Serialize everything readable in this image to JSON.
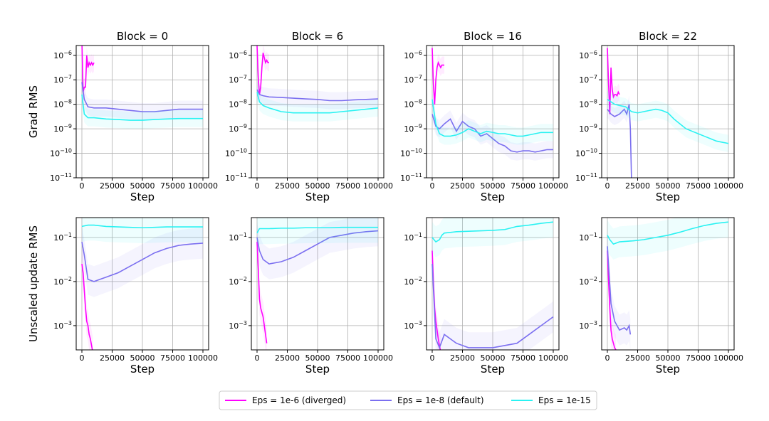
{
  "chart_data": {
    "type": "line",
    "blocks": [
      {
        "title": "Block = 0",
        "grad_x": [
          0,
          100000
        ],
        "upd_x": [
          0,
          100000
        ]
      },
      {
        "title": "Block = 6",
        "grad_x": [
          0,
          100000
        ],
        "upd_x": [
          0,
          100000
        ]
      },
      {
        "title": "Block = 16",
        "grad_x": [
          0,
          100000
        ],
        "upd_x": [
          0,
          100000
        ]
      },
      {
        "title": "Block = 22",
        "grad_x": [
          0,
          100000
        ],
        "upd_x": [
          0,
          100000
        ]
      }
    ],
    "xlabel": "Step",
    "x_ticks": [
      "0",
      "25000",
      "50000",
      "75000",
      "100000"
    ],
    "rows": [
      {
        "ylabel": "Grad RMS",
        "y_ticks": [
          "10-11",
          "10-10",
          "10-9",
          "10-8",
          "10-7",
          "10-6"
        ],
        "y_log_range": [
          -11,
          -5.6
        ]
      },
      {
        "ylabel": "Unscaled update RMS",
        "y_ticks": [
          "10-3",
          "10-2",
          "10-1"
        ],
        "y_log_range": [
          -3.55,
          -0.55
        ]
      }
    ],
    "legend": {
      "placement": "bottom-center",
      "entries": [
        {
          "label": "Eps = 1e-6 (diverged)",
          "color": "#ff00ff"
        },
        {
          "label": "Eps = 1e-8 (default)",
          "color": "#7b6ff0"
        },
        {
          "label": "Eps = 1e-15",
          "color": "#2af2f2"
        }
      ]
    },
    "series": {
      "grad": [
        [
          {
            "name": "Eps = 1e-6 (diverged)",
            "x": [
              0,
              1000,
              2000,
              3000,
              4000,
              5000,
              6000,
              7000,
              8000,
              9000,
              10000
            ],
            "y": [
              -5.4,
              -7.5,
              -7.3,
              -7.3,
              -6.0,
              -6.5,
              -6.3,
              -6.4,
              -6.3,
              -6.4,
              -6.3
            ]
          },
          {
            "name": "Eps = 1e-8 (default)",
            "x": [
              0,
              2000,
              5000,
              10000,
              20000,
              30000,
              40000,
              50000,
              60000,
              70000,
              80000,
              90000,
              100000
            ],
            "y": [
              -7.1,
              -7.8,
              -8.1,
              -8.15,
              -8.15,
              -8.2,
              -8.25,
              -8.3,
              -8.3,
              -8.25,
              -8.2,
              -8.2,
              -8.2
            ]
          },
          {
            "name": "Eps = 1e-15",
            "x": [
              0,
              2000,
              5000,
              10000,
              20000,
              30000,
              40000,
              50000,
              60000,
              70000,
              80000,
              90000,
              100000
            ],
            "y": [
              -7.6,
              -8.4,
              -8.55,
              -8.55,
              -8.6,
              -8.62,
              -8.65,
              -8.65,
              -8.62,
              -8.6,
              -8.58,
              -8.58,
              -8.58
            ]
          }
        ],
        [
          {
            "name": "Eps = 1e-6 (diverged)",
            "x": [
              0,
              1000,
              2000,
              3000,
              4000,
              5000,
              6000,
              7000,
              8000,
              9000,
              10000
            ],
            "y": [
              -5.6,
              -6.9,
              -7.6,
              -7.3,
              -6.5,
              -5.9,
              -6.1,
              -6.3,
              -6.2,
              -6.3,
              -6.3
            ]
          },
          {
            "name": "Eps = 1e-8 (default)",
            "x": [
              0,
              2000,
              5000,
              10000,
              20000,
              30000,
              40000,
              50000,
              60000,
              70000,
              80000,
              90000,
              100000
            ],
            "y": [
              -7.4,
              -7.6,
              -7.65,
              -7.7,
              -7.72,
              -7.75,
              -7.78,
              -7.8,
              -7.85,
              -7.85,
              -7.82,
              -7.8,
              -7.78
            ]
          },
          {
            "name": "Eps = 1e-15",
            "x": [
              0,
              2000,
              5000,
              10000,
              20000,
              30000,
              40000,
              50000,
              60000,
              70000,
              80000,
              90000,
              100000
            ],
            "y": [
              -7.5,
              -7.9,
              -8.05,
              -8.15,
              -8.3,
              -8.35,
              -8.35,
              -8.35,
              -8.35,
              -8.3,
              -8.25,
              -8.2,
              -8.15
            ]
          }
        ],
        [
          {
            "name": "Eps = 1e-6 (diverged)",
            "x": [
              0,
              1000,
              2000,
              3000,
              4000,
              5000,
              6000,
              7000,
              8000,
              9000,
              10000
            ],
            "y": [
              -5.7,
              -7.2,
              -8.0,
              -7.0,
              -6.5,
              -6.3,
              -6.4,
              -6.5,
              -6.4,
              -6.4,
              -6.4
            ]
          },
          {
            "name": "Eps = 1e-8 (default)",
            "x": [
              0,
              3000,
              6000,
              10000,
              15000,
              20000,
              25000,
              30000,
              35000,
              40000,
              45000,
              50000,
              55000,
              60000,
              65000,
              70000,
              75000,
              80000,
              85000,
              90000,
              95000,
              100000
            ],
            "y": [
              -8.4,
              -8.9,
              -9.0,
              -8.8,
              -8.6,
              -9.1,
              -8.7,
              -8.9,
              -9.0,
              -9.3,
              -9.2,
              -9.4,
              -9.6,
              -9.7,
              -9.9,
              -9.95,
              -9.9,
              -9.9,
              -9.95,
              -9.9,
              -9.85,
              -9.85
            ]
          },
          {
            "name": "Eps = 1e-15",
            "x": [
              0,
              3000,
              6000,
              10000,
              15000,
              20000,
              25000,
              30000,
              35000,
              40000,
              45000,
              50000,
              55000,
              60000,
              65000,
              70000,
              75000,
              80000,
              85000,
              90000,
              95000,
              100000
            ],
            "y": [
              -7.8,
              -8.8,
              -9.2,
              -9.3,
              -9.3,
              -9.25,
              -9.15,
              -9.0,
              -9.1,
              -9.2,
              -9.1,
              -9.15,
              -9.2,
              -9.2,
              -9.25,
              -9.3,
              -9.3,
              -9.25,
              -9.2,
              -9.15,
              -9.15,
              -9.15
            ]
          }
        ],
        [
          {
            "name": "Eps = 1e-6 (diverged)",
            "x": [
              0,
              1000,
              2000,
              3000,
              4000,
              5000,
              6000,
              7000,
              8000,
              9000,
              10000
            ],
            "y": [
              -5.7,
              -7.2,
              -8.4,
              -6.5,
              -7.4,
              -7.7,
              -7.6,
              -7.6,
              -7.65,
              -7.5,
              -7.6
            ]
          },
          {
            "name": "Eps = 1e-8 (default)",
            "x": [
              0,
              3000,
              6000,
              10000,
              14000,
              16000,
              18000,
              19000,
              20000
            ],
            "y": [
              -8.2,
              -8.4,
              -8.5,
              -8.4,
              -8.2,
              -8.4,
              -8.0,
              -9.0,
              -11.2
            ]
          },
          {
            "name": "Eps = 1e-15",
            "x": [
              0,
              3000,
              6000,
              10000,
              15000,
              20000,
              25000,
              30000,
              35000,
              40000,
              45000,
              50000,
              55000,
              60000,
              65000,
              70000,
              75000,
              80000,
              85000,
              90000,
              95000,
              100000
            ],
            "y": [
              -7.8,
              -7.9,
              -8.0,
              -8.05,
              -8.1,
              -8.3,
              -8.35,
              -8.3,
              -8.25,
              -8.2,
              -8.25,
              -8.35,
              -8.6,
              -8.8,
              -9.0,
              -9.1,
              -9.2,
              -9.3,
              -9.4,
              -9.5,
              -9.55,
              -9.6
            ]
          }
        ]
      ],
      "update": [
        [
          {
            "name": "Eps = 1e-6 (diverged)",
            "x": [
              0,
              1000,
              2000,
              3000,
              4000,
              5000,
              6000,
              7000,
              8000,
              9000
            ],
            "y": [
              -1.6,
              -1.8,
              -2.2,
              -2.6,
              -2.9,
              -3.0,
              -3.2,
              -3.3,
              -3.45,
              -3.6
            ]
          },
          {
            "name": "Eps = 1e-8 (default)",
            "x": [
              0,
              2000,
              5000,
              10000,
              15000,
              20000,
              30000,
              40000,
              50000,
              60000,
              70000,
              80000,
              90000,
              100000
            ],
            "y": [
              -1.1,
              -1.4,
              -1.95,
              -2.0,
              -1.95,
              -1.9,
              -1.8,
              -1.65,
              -1.5,
              -1.35,
              -1.25,
              -1.18,
              -1.15,
              -1.13
            ]
          },
          {
            "name": "Eps = 1e-15",
            "x": [
              0,
              5000,
              10000,
              20000,
              30000,
              40000,
              50000,
              60000,
              70000,
              80000,
              90000,
              100000
            ],
            "y": [
              -0.75,
              -0.72,
              -0.72,
              -0.75,
              -0.76,
              -0.77,
              -0.78,
              -0.77,
              -0.76,
              -0.76,
              -0.76,
              -0.76
            ]
          }
        ],
        [
          {
            "name": "Eps = 1e-6 (diverged)",
            "x": [
              0,
              1000,
              2000,
              3000,
              4000,
              5000,
              6000,
              7000,
              8000
            ],
            "y": [
              -1.1,
              -1.7,
              -2.4,
              -2.6,
              -2.7,
              -2.8,
              -3.0,
              -3.2,
              -3.4
            ]
          },
          {
            "name": "Eps = 1e-8 (default)",
            "x": [
              0,
              2000,
              5000,
              10000,
              20000,
              30000,
              40000,
              50000,
              60000,
              70000,
              80000,
              90000,
              100000
            ],
            "y": [
              -1.0,
              -1.3,
              -1.5,
              -1.6,
              -1.55,
              -1.45,
              -1.3,
              -1.15,
              -1.0,
              -0.95,
              -0.9,
              -0.87,
              -0.85
            ]
          },
          {
            "name": "Eps = 1e-15",
            "x": [
              0,
              2000,
              5000,
              10000,
              20000,
              30000,
              40000,
              50000,
              60000,
              70000,
              80000,
              90000,
              100000
            ],
            "y": [
              -0.9,
              -0.8,
              -0.8,
              -0.8,
              -0.79,
              -0.79,
              -0.78,
              -0.78,
              -0.78,
              -0.77,
              -0.77,
              -0.77,
              -0.77
            ]
          }
        ],
        [
          {
            "name": "Eps = 1e-6 (diverged)",
            "x": [
              0,
              1000,
              2000,
              3000,
              4000,
              5000,
              6000,
              7000
            ],
            "y": [
              -1.3,
              -2.0,
              -2.6,
              -2.9,
              -3.1,
              -3.3,
              -3.45,
              -3.6
            ]
          },
          {
            "name": "Eps = 1e-8 (default)",
            "x": [
              0,
              3000,
              6000,
              10000,
              15000,
              20000,
              25000,
              30000,
              40000,
              50000,
              60000,
              70000,
              80000,
              90000,
              100000
            ],
            "y": [
              -1.6,
              -3.3,
              -3.5,
              -3.2,
              -3.3,
              -3.4,
              -3.45,
              -3.5,
              -3.5,
              -3.5,
              -3.45,
              -3.4,
              -3.2,
              -3.0,
              -2.8
            ]
          },
          {
            "name": "Eps = 1e-15",
            "x": [
              0,
              3000,
              6000,
              8000,
              10000,
              20000,
              30000,
              40000,
              50000,
              60000,
              70000,
              80000,
              90000,
              100000
            ],
            "y": [
              -1.0,
              -1.1,
              -1.05,
              -0.95,
              -0.9,
              -0.87,
              -0.86,
              -0.85,
              -0.84,
              -0.82,
              -0.75,
              -0.72,
              -0.68,
              -0.65
            ]
          }
        ],
        [
          {
            "name": "Eps = 1e-6 (diverged)",
            "x": [
              0,
              1000,
              2000,
              3000,
              4000,
              5000,
              6000,
              7000
            ],
            "y": [
              -1.3,
              -2.0,
              -2.6,
              -3.1,
              -3.3,
              -3.4,
              -3.5,
              -3.55
            ]
          },
          {
            "name": "Eps = 1e-8 (default)",
            "x": [
              0,
              3000,
              6000,
              10000,
              14000,
              16000,
              18000,
              19000
            ],
            "y": [
              -1.2,
              -2.5,
              -2.9,
              -3.1,
              -3.05,
              -3.1,
              -3.0,
              -3.2
            ]
          },
          {
            "name": "Eps = 1e-15",
            "x": [
              0,
              2000,
              5000,
              10000,
              20000,
              30000,
              40000,
              50000,
              60000,
              70000,
              80000,
              90000,
              100000
            ],
            "y": [
              -0.95,
              -1.05,
              -1.15,
              -1.1,
              -1.08,
              -1.05,
              -1.0,
              -0.95,
              -0.88,
              -0.8,
              -0.73,
              -0.68,
              -0.65
            ]
          }
        ]
      ]
    }
  }
}
